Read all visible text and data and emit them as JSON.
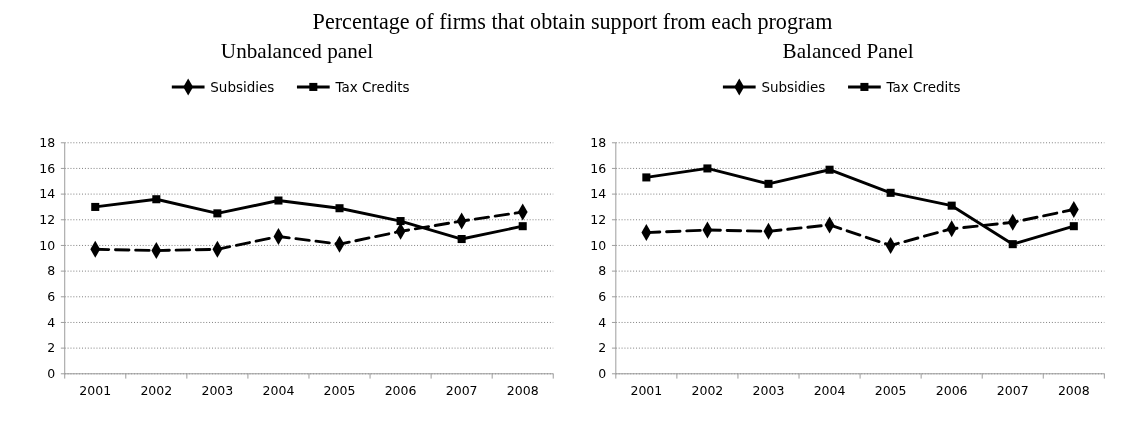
{
  "chart_data": [
    {
      "type": "line",
      "title": "Percentage of firms that obtain support from each program",
      "subtitle": "Unbalanced panel",
      "categories": [
        "2001",
        "2002",
        "2003",
        "2004",
        "2005",
        "2006",
        "2007",
        "2008"
      ],
      "series": [
        {
          "name": "Subsidies",
          "color": "#000000",
          "marker": "diamond",
          "line_style": "dashed",
          "values": [
            9.7,
            9.6,
            9.7,
            10.7,
            10.1,
            11.1,
            11.9,
            12.6
          ]
        },
        {
          "name": "Tax Credits",
          "color": "#000000",
          "marker": "square",
          "line_style": "solid",
          "values": [
            13.0,
            13.6,
            12.5,
            13.5,
            12.9,
            11.9,
            10.5,
            11.5
          ]
        }
      ],
      "ylim": [
        0,
        18
      ],
      "yticks": [
        0,
        2,
        4,
        6,
        8,
        10,
        12,
        14,
        16,
        18
      ],
      "grid": "y",
      "legend": "top"
    },
    {
      "type": "line",
      "subtitle": "Balanced Panel",
      "categories": [
        "2001",
        "2002",
        "2003",
        "2004",
        "2005",
        "2006",
        "2007",
        "2008"
      ],
      "series": [
        {
          "name": "Subsidies",
          "color": "#000000",
          "marker": "diamond",
          "line_style": "dashed",
          "values": [
            11.0,
            11.2,
            11.1,
            11.6,
            10.0,
            11.3,
            11.8,
            12.8
          ]
        },
        {
          "name": "Tax Credits",
          "color": "#000000",
          "marker": "square",
          "line_style": "solid",
          "values": [
            15.3,
            16.0,
            14.8,
            15.9,
            14.1,
            13.1,
            10.1,
            11.5
          ]
        }
      ],
      "ylim": [
        0,
        18
      ],
      "yticks": [
        0,
        2,
        4,
        6,
        8,
        10,
        12,
        14,
        16,
        18
      ],
      "grid": "y",
      "legend": "top"
    }
  ]
}
